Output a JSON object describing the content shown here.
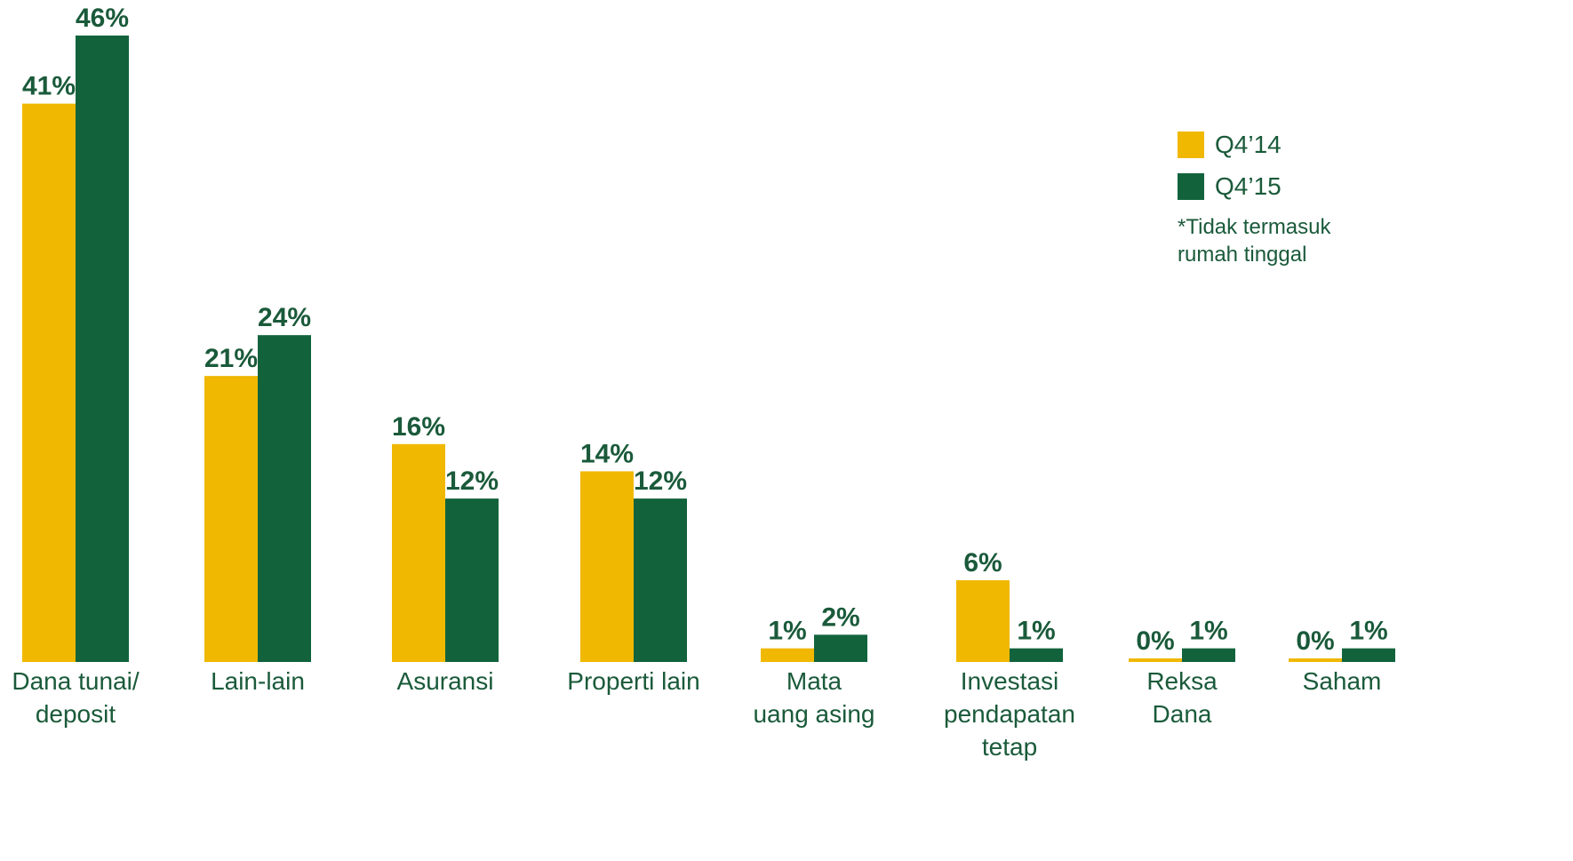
{
  "chart_data": {
    "type": "bar",
    "categories": [
      [
        "Dana tunai/",
        "deposit"
      ],
      [
        "Lain-lain"
      ],
      [
        "Asuransi"
      ],
      [
        "Properti lain"
      ],
      [
        "Mata",
        "uang asing"
      ],
      [
        "Investasi",
        "pendapatan",
        "tetap"
      ],
      [
        "Reksa",
        "Dana"
      ],
      [
        "Saham"
      ]
    ],
    "series": [
      {
        "name": "Q4’14",
        "color": "#f0b800",
        "values": [
          41,
          21,
          16,
          14,
          1,
          6,
          0,
          0
        ],
        "labels": [
          "41%",
          "21%",
          "16%",
          "14%",
          "1%",
          "6%",
          "0%",
          "0%"
        ]
      },
      {
        "name": "Q4’15",
        "color": "#12633c",
        "values": [
          46,
          24,
          12,
          12,
          2,
          1,
          1,
          1
        ],
        "labels": [
          "46%",
          "24%",
          "12%",
          "12%",
          "2%",
          "1%",
          "1%",
          "1%"
        ]
      }
    ],
    "ylim": [
      0,
      46
    ],
    "grid": false,
    "legend": "top-right",
    "label_color": "#1a5a3a",
    "note": [
      "*Tidak termasuk",
      "rumah tinggal"
    ]
  }
}
